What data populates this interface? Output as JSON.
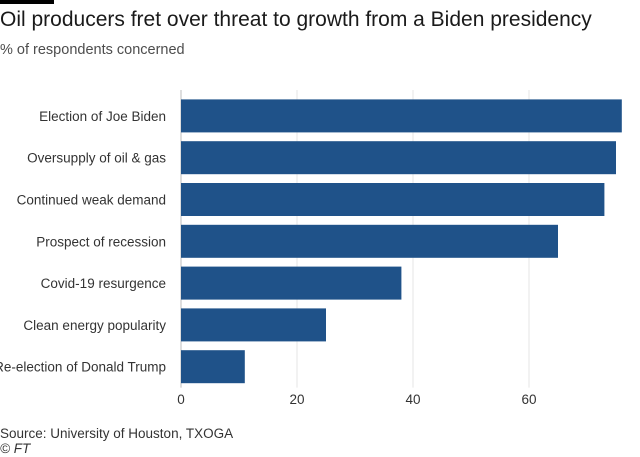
{
  "header": {
    "title": "Oil producers fret over threat to growth from a Biden presidency",
    "subtitle": "% of respondents concerned"
  },
  "footer": {
    "source": "Source: University of Houston, TXOGA",
    "credit": "© FT"
  },
  "colors": {
    "bar": "#1f5289",
    "grid": "#e6e6e6",
    "text": "#333333"
  },
  "chart_data": {
    "type": "bar",
    "orientation": "horizontal",
    "title": "Oil producers fret over threat to growth from a Biden presidency",
    "subtitle": "% of respondents concerned",
    "categories": [
      "Election of Joe Biden",
      "Oversupply of oil & gas",
      "Continued weak demand",
      "Prospect of recession",
      "Covid-19 resurgence",
      "Clean energy popularity",
      "Re-election of Donald Trump"
    ],
    "values": [
      76,
      75,
      73,
      65,
      38,
      25,
      11
    ],
    "xlim": [
      0,
      76
    ],
    "xticks": [
      0,
      20,
      40,
      60
    ],
    "grid": true,
    "xlabel": "",
    "ylabel": ""
  }
}
